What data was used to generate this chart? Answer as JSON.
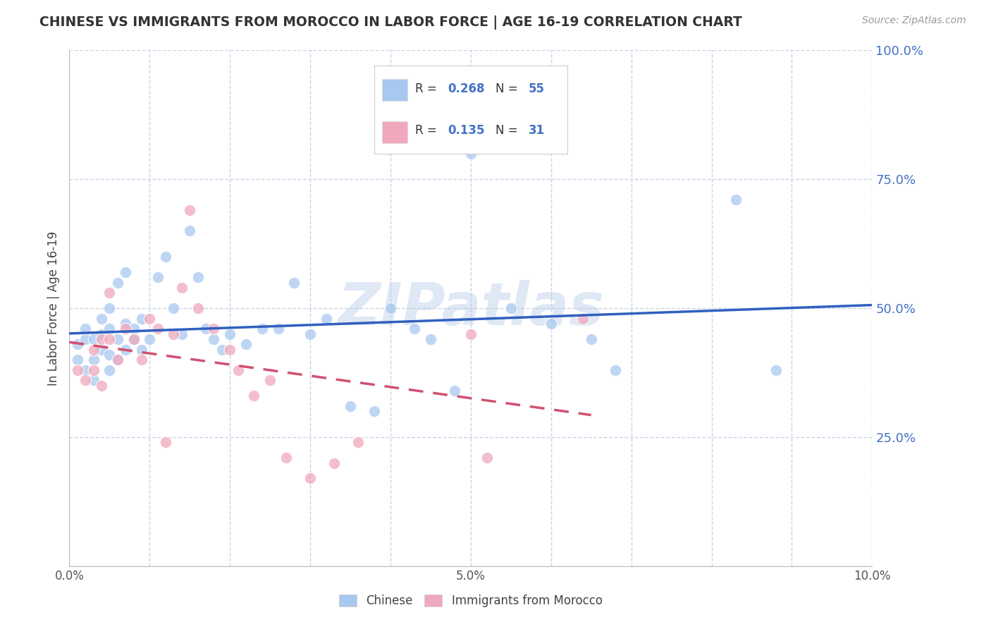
{
  "title": "CHINESE VS IMMIGRANTS FROM MOROCCO IN LABOR FORCE | AGE 16-19 CORRELATION CHART",
  "source": "Source: ZipAtlas.com",
  "ylabel": "In Labor Force | Age 16-19",
  "xlim": [
    0.0,
    0.1
  ],
  "ylim": [
    0.0,
    1.0
  ],
  "yticks": [
    0.0,
    0.25,
    0.5,
    0.75,
    1.0
  ],
  "ytick_labels": [
    "",
    "25.0%",
    "50.0%",
    "75.0%",
    "100.0%"
  ],
  "xtick_labels": [
    "0.0%",
    "",
    "",
    "",
    "",
    "5.0%",
    "",
    "",
    "",
    "",
    "10.0%"
  ],
  "xticks": [
    0.0,
    0.01,
    0.02,
    0.03,
    0.04,
    0.05,
    0.06,
    0.07,
    0.08,
    0.09,
    0.1
  ],
  "watermark": "ZIPatlas",
  "legend_label1": "Chinese",
  "legend_label2": "Immigrants from Morocco",
  "R1": 0.268,
  "N1": 55,
  "R2": 0.135,
  "N2": 31,
  "color_blue": "#a8c8f0",
  "color_pink": "#f0a8bc",
  "line_color_blue": "#3060c0",
  "line_color_pink": "#d05070",
  "background_color": "#ffffff",
  "grid_color": "#c8d4e8",
  "chinese_x": [
    0.001,
    0.001,
    0.002,
    0.002,
    0.002,
    0.003,
    0.003,
    0.003,
    0.004,
    0.004,
    0.004,
    0.005,
    0.005,
    0.005,
    0.005,
    0.006,
    0.006,
    0.006,
    0.007,
    0.007,
    0.007,
    0.008,
    0.008,
    0.009,
    0.009,
    0.01,
    0.011,
    0.012,
    0.013,
    0.014,
    0.015,
    0.016,
    0.017,
    0.018,
    0.019,
    0.02,
    0.022,
    0.024,
    0.026,
    0.028,
    0.03,
    0.032,
    0.035,
    0.038,
    0.04,
    0.043,
    0.045,
    0.048,
    0.05,
    0.055,
    0.06,
    0.065,
    0.068,
    0.083,
    0.088
  ],
  "chinese_y": [
    0.4,
    0.43,
    0.38,
    0.44,
    0.46,
    0.36,
    0.4,
    0.44,
    0.42,
    0.45,
    0.48,
    0.38,
    0.41,
    0.46,
    0.5,
    0.4,
    0.44,
    0.55,
    0.42,
    0.47,
    0.57,
    0.44,
    0.46,
    0.42,
    0.48,
    0.44,
    0.56,
    0.6,
    0.5,
    0.45,
    0.65,
    0.56,
    0.46,
    0.44,
    0.42,
    0.45,
    0.43,
    0.46,
    0.46,
    0.55,
    0.45,
    0.48,
    0.31,
    0.3,
    0.5,
    0.46,
    0.44,
    0.34,
    0.8,
    0.5,
    0.47,
    0.44,
    0.38,
    0.71,
    0.38
  ],
  "morocco_x": [
    0.001,
    0.002,
    0.003,
    0.003,
    0.004,
    0.004,
    0.005,
    0.005,
    0.006,
    0.007,
    0.008,
    0.009,
    0.01,
    0.011,
    0.012,
    0.013,
    0.014,
    0.015,
    0.016,
    0.018,
    0.02,
    0.021,
    0.023,
    0.025,
    0.027,
    0.03,
    0.033,
    0.036,
    0.05,
    0.052,
    0.064
  ],
  "morocco_y": [
    0.38,
    0.36,
    0.42,
    0.38,
    0.44,
    0.35,
    0.53,
    0.44,
    0.4,
    0.46,
    0.44,
    0.4,
    0.48,
    0.46,
    0.24,
    0.45,
    0.54,
    0.69,
    0.5,
    0.46,
    0.42,
    0.38,
    0.33,
    0.36,
    0.21,
    0.17,
    0.2,
    0.24,
    0.45,
    0.21,
    0.48
  ]
}
